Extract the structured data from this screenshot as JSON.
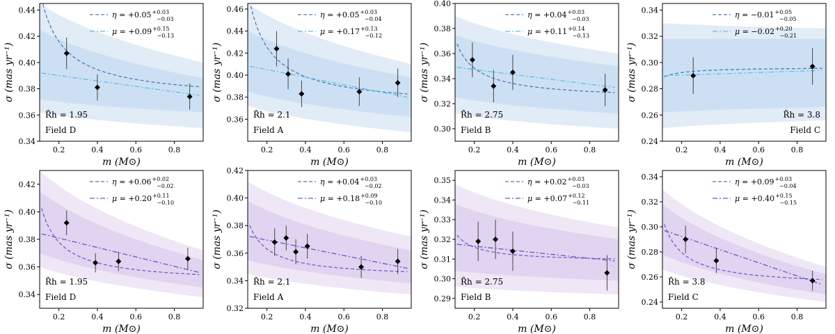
{
  "figure": {
    "colors": {
      "top_line": "#4a7db3",
      "top_alt": "#5bc0e6",
      "top_band_outer": "#dce9f6",
      "top_band_inner": "#c9def2",
      "bottom_line": "#7b5bc4",
      "bottom_alt": "#6a55cc",
      "bottom_band_outer": "#ece2f4",
      "bottom_band_inner": "#ddd0ee",
      "marker": "#000000"
    }
  },
  "chart_data": [
    {
      "type": "line",
      "title": "",
      "xlabel": "m (M⊙)",
      "ylabel": "σ (mas yr⁻¹)",
      "xlim": [
        0.1,
        0.95
      ],
      "ylim": [
        0.34,
        0.445
      ],
      "xticks": [
        0.2,
        0.4,
        0.6,
        0.8
      ],
      "xtick_labels": [
        "0.2",
        "0.4",
        "0.6",
        "0.8"
      ],
      "yticks": [
        0.34,
        0.36,
        0.38,
        0.4,
        0.42,
        0.44
      ],
      "ytick_labels": [
        "0.34",
        "0.36",
        "0.38",
        "0.40",
        "0.42",
        "0.44"
      ],
      "row": "top",
      "rh_label": "R̄h = 1.95",
      "field_label": "Field D",
      "annot_side": "left",
      "legend": {
        "eta": {
          "prefix": "η = ",
          "value": "+0.05",
          "sup": "+0.03",
          "sub": "−0.03"
        },
        "mu": {
          "prefix": "μ = ",
          "value": "+0.09",
          "sup": "+0.15",
          "sub": "−0.13"
        }
      },
      "points": [
        {
          "x": 0.24,
          "y": 0.407,
          "err": 0.012
        },
        {
          "x": 0.4,
          "y": 0.381,
          "err": 0.01
        },
        {
          "x": 0.88,
          "y": 0.374,
          "err": 0.01
        }
      ],
      "eta_curve": {
        "A": 0.37,
        "B": 0.0108,
        "exp": -0.9
      },
      "mu_curve": {
        "y0": 0.392,
        "y1": 0.375
      },
      "band_outer": {
        "lo": [
          0.362,
          0.35
        ],
        "hi": [
          0.445,
          0.4
        ]
      },
      "band_inner": {
        "lo": [
          0.372,
          0.362
        ],
        "hi": [
          0.425,
          0.388
        ]
      }
    },
    {
      "type": "line",
      "title": "",
      "xlabel": "m (M⊙)",
      "ylabel": "σ (mas yr⁻¹)",
      "xlim": [
        0.1,
        0.95
      ],
      "ylim": [
        0.34,
        0.465
      ],
      "xticks": [
        0.2,
        0.4,
        0.6,
        0.8
      ],
      "xtick_labels": [
        "0.2",
        "0.4",
        "0.6",
        "0.8"
      ],
      "yticks": [
        0.36,
        0.38,
        0.4,
        0.42,
        0.44,
        0.46
      ],
      "ytick_labels": [
        "0.36",
        "0.38",
        "0.40",
        "0.42",
        "0.44",
        "0.46"
      ],
      "row": "top",
      "rh_label": "R̄h = 2.1",
      "field_label": "Field A",
      "annot_side": "left",
      "legend": {
        "eta": {
          "prefix": "η = ",
          "value": "+0.05",
          "sup": "+0.03",
          "sub": "−0.04"
        },
        "mu": {
          "prefix": "μ = ",
          "value": "+0.17",
          "sup": "+0.13",
          "sub": "−0.12"
        }
      },
      "points": [
        {
          "x": 0.25,
          "y": 0.424,
          "err": 0.016
        },
        {
          "x": 0.31,
          "y": 0.401,
          "err": 0.014
        },
        {
          "x": 0.38,
          "y": 0.383,
          "err": 0.012
        },
        {
          "x": 0.68,
          "y": 0.385,
          "err": 0.013
        },
        {
          "x": 0.88,
          "y": 0.393,
          "err": 0.013
        }
      ],
      "eta_curve": {
        "A": 0.37,
        "B": 0.012,
        "exp": -0.95
      },
      "mu_curve": {
        "y0": 0.408,
        "y1": 0.38
      },
      "band_outer": {
        "lo": [
          0.372,
          0.348
        ],
        "hi": [
          0.465,
          0.41
        ]
      },
      "band_inner": {
        "lo": [
          0.385,
          0.362
        ],
        "hi": [
          0.44,
          0.398
        ]
      }
    },
    {
      "type": "line",
      "title": "",
      "xlabel": "m (M⊙)",
      "ylabel": "σ (mas yr⁻¹)",
      "xlim": [
        0.1,
        0.95
      ],
      "ylim": [
        0.29,
        0.4
      ],
      "xticks": [
        0.2,
        0.4,
        0.6,
        0.8
      ],
      "xtick_labels": [
        "0.2",
        "0.4",
        "0.6",
        "0.8"
      ],
      "yticks": [
        0.3,
        0.32,
        0.34,
        0.36,
        0.38,
        0.4
      ],
      "ytick_labels": [
        "0.30",
        "0.32",
        "0.34",
        "0.36",
        "0.38",
        "0.40"
      ],
      "row": "top",
      "rh_label": "R̄h = 2.75",
      "field_label": "Field B",
      "annot_side": "left",
      "legend": {
        "eta": {
          "prefix": "η = ",
          "value": "+0.04",
          "sup": "+0.03",
          "sub": "−0.03"
        },
        "mu": {
          "prefix": "μ = ",
          "value": "+0.11",
          "sup": "+0.14",
          "sub": "−0.13"
        }
      },
      "points": [
        {
          "x": 0.19,
          "y": 0.355,
          "err": 0.014
        },
        {
          "x": 0.3,
          "y": 0.334,
          "err": 0.013
        },
        {
          "x": 0.4,
          "y": 0.345,
          "err": 0.014
        },
        {
          "x": 0.88,
          "y": 0.331,
          "err": 0.013
        }
      ],
      "eta_curve": {
        "A": 0.323,
        "B": 0.0055,
        "exp": -0.95
      },
      "mu_curve": {
        "y0": 0.349,
        "y1": 0.333
      },
      "band_outer": {
        "lo": [
          0.312,
          0.3
        ],
        "hi": [
          0.39,
          0.36
        ]
      },
      "band_inner": {
        "lo": [
          0.325,
          0.312
        ],
        "hi": [
          0.375,
          0.35
        ]
      }
    },
    {
      "type": "line",
      "title": "",
      "xlabel": "m (M⊙)",
      "ylabel": "σ (mas yr⁻¹)",
      "xlim": [
        0.1,
        0.95
      ],
      "ylim": [
        0.24,
        0.345
      ],
      "xticks": [
        0.2,
        0.4,
        0.6,
        0.8
      ],
      "xtick_labels": [
        "0.2",
        "0.4",
        "0.6",
        "0.8"
      ],
      "yticks": [
        0.24,
        0.26,
        0.28,
        0.3,
        0.32,
        0.34
      ],
      "ytick_labels": [
        "0.24",
        "0.26",
        "0.28",
        "0.30",
        "0.32",
        "0.34"
      ],
      "row": "top",
      "rh_label": "R̄h = 3.8",
      "field_label": "Field C",
      "annot_side": "right",
      "legend": {
        "eta": {
          "prefix": "η = ",
          "value": "−0.01",
          "sup": "+0.05",
          "sub": "−0.05"
        },
        "mu": {
          "prefix": "μ = ",
          "value": "−0.02",
          "sup": "+0.20",
          "sub": "−0.21"
        }
      },
      "points": [
        {
          "x": 0.26,
          "y": 0.29,
          "err": 0.014
        },
        {
          "x": 0.88,
          "y": 0.297,
          "err": 0.014
        }
      ],
      "eta_curve": {
        "A": 0.2965,
        "B": -0.0009,
        "exp": -0.95
      },
      "mu_curve": {
        "y0": 0.29,
        "y1": 0.294
      },
      "band_outer": {
        "lo": [
          0.25,
          0.256
        ],
        "hi": [
          0.33,
          0.326
        ]
      },
      "band_inner": {
        "lo": [
          0.262,
          0.266
        ],
        "hi": [
          0.318,
          0.318
        ]
      }
    },
    {
      "type": "line",
      "title": "",
      "xlabel": "m (M⊙)",
      "ylabel": "σ (mas yr⁻¹)",
      "xlim": [
        0.1,
        0.95
      ],
      "ylim": [
        0.33,
        0.43
      ],
      "xticks": [
        0.2,
        0.4,
        0.6,
        0.8
      ],
      "xtick_labels": [
        "0.2",
        "0.4",
        "0.6",
        "0.8"
      ],
      "yticks": [
        0.34,
        0.36,
        0.38,
        0.4,
        0.42
      ],
      "ytick_labels": [
        "0.34",
        "0.36",
        "0.38",
        "0.40",
        "0.42"
      ],
      "row": "bottom",
      "rh_label": "R̄h = 1.95",
      "field_label": "Field D",
      "annot_side": "left",
      "legend": {
        "eta": {
          "prefix": "η = ",
          "value": "+0.06",
          "sup": "+0.02",
          "sub": "−0.02"
        },
        "mu": {
          "prefix": "μ = ",
          "value": "+0.20",
          "sup": "+0.11",
          "sub": "−0.10"
        }
      },
      "points": [
        {
          "x": 0.24,
          "y": 0.392,
          "err": 0.009
        },
        {
          "x": 0.39,
          "y": 0.363,
          "err": 0.007
        },
        {
          "x": 0.51,
          "y": 0.364,
          "err": 0.007
        },
        {
          "x": 0.87,
          "y": 0.366,
          "err": 0.008
        }
      ],
      "eta_curve": {
        "A": 0.348,
        "B": 0.006,
        "exp": -1.0
      },
      "mu_curve": {
        "y0": 0.384,
        "y1": 0.356
      },
      "band_outer": {
        "lo": [
          0.36,
          0.338
        ],
        "hi": [
          0.43,
          0.372
        ]
      },
      "band_inner": {
        "lo": [
          0.37,
          0.345
        ],
        "hi": [
          0.415,
          0.365
        ]
      }
    },
    {
      "type": "line",
      "title": "",
      "xlabel": "m (M⊙)",
      "ylabel": "σ (mas yr⁻¹)",
      "xlim": [
        0.1,
        0.95
      ],
      "ylim": [
        0.32,
        0.42
      ],
      "xticks": [
        0.2,
        0.4,
        0.6,
        0.8
      ],
      "xtick_labels": [
        "0.2",
        "0.4",
        "0.6",
        "0.8"
      ],
      "yticks": [
        0.32,
        0.34,
        0.36,
        0.38,
        0.4,
        0.42
      ],
      "ytick_labels": [
        "0.32",
        "0.34",
        "0.36",
        "0.38",
        "0.40",
        "0.42"
      ],
      "row": "bottom",
      "rh_label": "R̄h = 2.1",
      "field_label": "Field A",
      "annot_side": "left",
      "legend": {
        "eta": {
          "prefix": "η = ",
          "value": "+0.04",
          "sup": "+0.03",
          "sub": "−0.02"
        },
        "mu": {
          "prefix": "μ = ",
          "value": "+0.18",
          "sup": "+0.09",
          "sub": "−0.10"
        }
      },
      "points": [
        {
          "x": 0.24,
          "y": 0.368,
          "err": 0.01
        },
        {
          "x": 0.3,
          "y": 0.371,
          "err": 0.009
        },
        {
          "x": 0.35,
          "y": 0.361,
          "err": 0.009
        },
        {
          "x": 0.41,
          "y": 0.365,
          "err": 0.009
        },
        {
          "x": 0.69,
          "y": 0.35,
          "err": 0.008
        },
        {
          "x": 0.88,
          "y": 0.354,
          "err": 0.009
        }
      ],
      "eta_curve": {
        "A": 0.342,
        "B": 0.0042,
        "exp": -1.0
      },
      "mu_curve": {
        "y0": 0.372,
        "y1": 0.349
      },
      "band_outer": {
        "lo": [
          0.345,
          0.33
        ],
        "hi": [
          0.412,
          0.372
        ]
      },
      "band_inner": {
        "lo": [
          0.355,
          0.338
        ],
        "hi": [
          0.398,
          0.362
        ]
      }
    },
    {
      "type": "line",
      "title": "",
      "xlabel": "m (M⊙)",
      "ylabel": "σ (mas yr⁻¹)",
      "xlim": [
        0.1,
        0.95
      ],
      "ylim": [
        0.285,
        0.355
      ],
      "xticks": [
        0.2,
        0.4,
        0.6,
        0.8
      ],
      "xtick_labels": [
        "0.2",
        "0.4",
        "0.6",
        "0.8"
      ],
      "yticks": [
        0.29,
        0.3,
        0.31,
        0.32,
        0.33,
        0.34,
        0.35
      ],
      "ytick_labels": [
        "0.29",
        "0.30",
        "0.31",
        "0.32",
        "0.33",
        "0.34",
        "0.35"
      ],
      "row": "bottom",
      "rh_label": "R̄h = 2.75",
      "field_label": "Field B",
      "annot_side": "left",
      "legend": {
        "eta": {
          "prefix": "η = ",
          "value": "+0.02",
          "sup": "+0.03",
          "sub": "−0.03"
        },
        "mu": {
          "prefix": "μ = ",
          "value": "+0.07",
          "sup": "+0.12",
          "sub": "−0.11"
        }
      },
      "points": [
        {
          "x": 0.22,
          "y": 0.319,
          "err": 0.01
        },
        {
          "x": 0.31,
          "y": 0.32,
          "err": 0.01
        },
        {
          "x": 0.4,
          "y": 0.314,
          "err": 0.01
        },
        {
          "x": 0.89,
          "y": 0.303,
          "err": 0.009
        }
      ],
      "eta_curve": {
        "A": 0.3085,
        "B": 0.0015,
        "exp": -1.0
      },
      "mu_curve": {
        "y0": 0.3175,
        "y1": 0.309
      },
      "band_outer": {
        "lo": [
          0.296,
          0.292
        ],
        "hi": [
          0.348,
          0.326
        ]
      },
      "band_inner": {
        "lo": [
          0.304,
          0.299
        ],
        "hi": [
          0.338,
          0.32
        ]
      }
    },
    {
      "type": "line",
      "title": "",
      "xlabel": "m (M⊙)",
      "ylabel": "σ (mas yr⁻¹)",
      "xlim": [
        0.1,
        0.95
      ],
      "ylim": [
        0.235,
        0.345
      ],
      "xticks": [
        0.2,
        0.4,
        0.6,
        0.8
      ],
      "xtick_labels": [
        "0.2",
        "0.4",
        "0.6",
        "0.8"
      ],
      "yticks": [
        0.24,
        0.26,
        0.28,
        0.3,
        0.32,
        0.34
      ],
      "ytick_labels": [
        "0.24",
        "0.26",
        "0.28",
        "0.30",
        "0.32",
        "0.34"
      ],
      "row": "bottom",
      "rh_label": "R̄h = 3.8",
      "field_label": "Field C",
      "annot_side": "left",
      "legend": {
        "eta": {
          "prefix": "η = ",
          "value": "+0.09",
          "sup": "+0.03",
          "sub": "−0.04"
        },
        "mu": {
          "prefix": "μ = ",
          "value": "+0.40",
          "sup": "+0.15",
          "sub": "−0.15"
        }
      },
      "points": [
        {
          "x": 0.22,
          "y": 0.29,
          "err": 0.011
        },
        {
          "x": 0.38,
          "y": 0.273,
          "err": 0.01
        },
        {
          "x": 0.88,
          "y": 0.257,
          "err": 0.008
        }
      ],
      "eta_curve": {
        "A": 0.252,
        "B": 0.0055,
        "exp": -1.0
      },
      "mu_curve": {
        "y0": 0.297,
        "y1": 0.254
      },
      "band_outer": {
        "lo": [
          0.266,
          0.24
        ],
        "hi": [
          0.33,
          0.268
        ]
      },
      "band_inner": {
        "lo": [
          0.278,
          0.246
        ],
        "hi": [
          0.318,
          0.262
        ]
      }
    }
  ]
}
